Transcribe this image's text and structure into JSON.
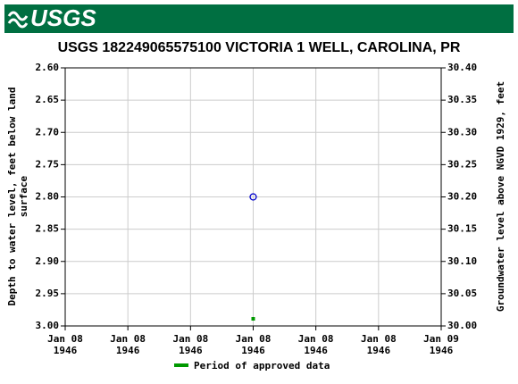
{
  "chart_data": {
    "type": "scatter",
    "logo": "USGS",
    "title": "USGS 182249065575100 VICTORIA 1 WELL, CAROLINA, PR",
    "ylabel": [
      "Depth to water level, feet below land",
      "surface"
    ],
    "y2label": "Groundwater level above NGVD 1929, feet",
    "y_inverted": true,
    "grid": true,
    "xlim": [
      0,
      6
    ],
    "xticks": [
      {
        "value": 0,
        "label": [
          "Jan 08",
          "1946"
        ]
      },
      {
        "value": 1,
        "label": [
          "Jan 08",
          "1946"
        ]
      },
      {
        "value": 2,
        "label": [
          "Jan 08",
          "1946"
        ]
      },
      {
        "value": 3,
        "label": [
          "Jan 08",
          "1946"
        ]
      },
      {
        "value": 4,
        "label": [
          "Jan 08",
          "1946"
        ]
      },
      {
        "value": 5,
        "label": [
          "Jan 08",
          "1946"
        ]
      },
      {
        "value": 6,
        "label": [
          "Jan 09",
          "1946"
        ]
      }
    ],
    "ylim": [
      2.6,
      3.0
    ],
    "yticks": [
      {
        "value": 2.6,
        "label": "2.60"
      },
      {
        "value": 2.65,
        "label": "2.65"
      },
      {
        "value": 2.7,
        "label": "2.70"
      },
      {
        "value": 2.75,
        "label": "2.75"
      },
      {
        "value": 2.8,
        "label": "2.80"
      },
      {
        "value": 2.85,
        "label": "2.85"
      },
      {
        "value": 2.9,
        "label": "2.90"
      },
      {
        "value": 2.95,
        "label": "2.95"
      },
      {
        "value": 3.0,
        "label": "3.00"
      }
    ],
    "y2lim": [
      30.4,
      30.0
    ],
    "y2ticks": [
      {
        "value": 30.4,
        "label": "30.40"
      },
      {
        "value": 30.35,
        "label": "30.35"
      },
      {
        "value": 30.3,
        "label": "30.30"
      },
      {
        "value": 30.25,
        "label": "30.25"
      },
      {
        "value": 30.2,
        "label": "30.20"
      },
      {
        "value": 30.15,
        "label": "30.15"
      },
      {
        "value": 30.1,
        "label": "30.10"
      },
      {
        "value": 30.05,
        "label": "30.05"
      },
      {
        "value": 30.0,
        "label": "30.00"
      }
    ],
    "series": [
      {
        "color": "#0000cc",
        "x": [
          3
        ],
        "values": [
          2.8
        ]
      }
    ],
    "approved_periods": {
      "name": "Period of approved data",
      "color": "#009900",
      "x": [
        3
      ]
    }
  }
}
